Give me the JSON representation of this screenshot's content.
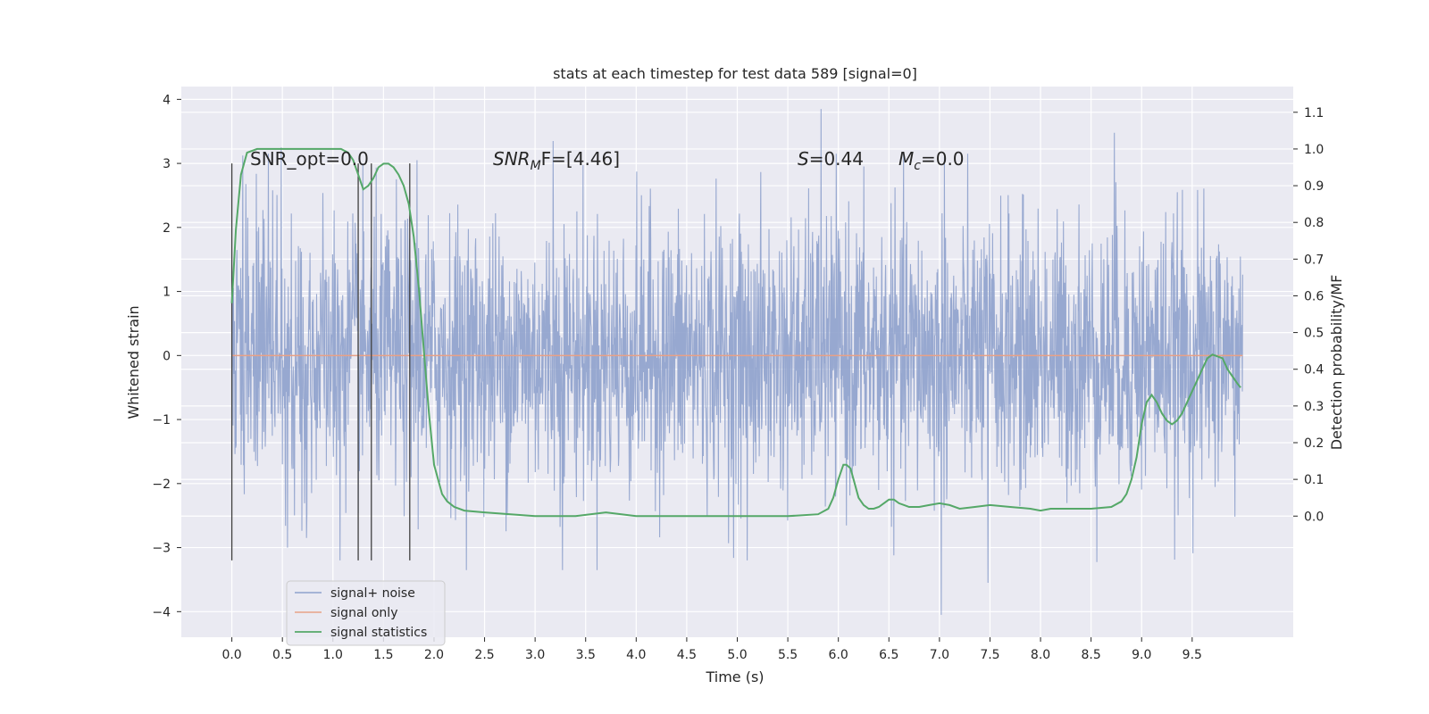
{
  "chart_data": {
    "type": "line",
    "title": "stats at each timestep for test data 589 [signal=0]",
    "xlabel": "Time (s)",
    "ylabel": "Whitened strain",
    "y2label": "Detection probability/MF",
    "xlim": [
      -0.5,
      10.5
    ],
    "ylim": [
      -4.4,
      4.2
    ],
    "y2lim": [
      -0.33,
      1.17
    ],
    "xticks": [
      "0.0",
      "0.5",
      "1.0",
      "1.5",
      "2.0",
      "2.5",
      "3.0",
      "3.5",
      "4.0",
      "4.5",
      "5.0",
      "5.5",
      "6.0",
      "6.5",
      "7.0",
      "7.5",
      "8.0",
      "8.5",
      "9.0",
      "9.5"
    ],
    "yticks": [
      "4",
      "3",
      "2",
      "1",
      "0",
      "−1",
      "−2",
      "−3",
      "−4"
    ],
    "y2ticks": [
      "1.1",
      "1.0",
      "0.9",
      "0.8",
      "0.7",
      "0.6",
      "0.5",
      "0.4",
      "0.3",
      "0.2",
      "0.1",
      "0.0"
    ],
    "grid": true,
    "legend_position": "lower-left",
    "annotations": {
      "snr_opt": "SNR_opt=0.0",
      "snr_mf_italic": "SNR",
      "snr_mf_sub": "M",
      "snr_mf_rest": "F=[4.46]",
      "s_italic": "S",
      "s_rest": "=0.44",
      "mc_italic": "M",
      "mc_sub": "c",
      "mc_rest": "=0.0"
    },
    "vertical_markers_x": [
      0.0,
      1.25,
      1.38,
      1.76
    ],
    "vertical_markers_range": [
      -3.2,
      3.0
    ],
    "noise": {
      "x_range": [
        0.0,
        10.0
      ],
      "typical_amplitude": 1.05,
      "max": 3.85,
      "min": -4.05,
      "peaks": [
        [
          5.83,
          3.85
        ],
        [
          8.73,
          3.48
        ],
        [
          3.18,
          3.35
        ],
        [
          0.49,
          3.25
        ],
        [
          7.05,
          3.1
        ],
        [
          1.83,
          3.05
        ],
        [
          7.02,
          -4.05
        ],
        [
          7.48,
          -3.55
        ],
        [
          3.27,
          -3.35
        ],
        [
          0.55,
          -3.0
        ],
        [
          5.1,
          -3.2
        ],
        [
          1.07,
          -3.2
        ]
      ]
    },
    "series": [
      {
        "name": "signal+ noise",
        "color": "#8ea1cc"
      },
      {
        "name": "signal only",
        "color": "#e8a186",
        "x": [
          0.0,
          10.0
        ],
        "y": [
          0.0,
          0.0
        ]
      },
      {
        "name": "signal statistics",
        "color": "#55a868",
        "x": [
          0.0,
          0.04,
          0.09,
          0.15,
          0.25,
          0.4,
          0.6,
          0.8,
          1.0,
          1.08,
          1.15,
          1.2,
          1.25,
          1.3,
          1.35,
          1.4,
          1.45,
          1.5,
          1.55,
          1.6,
          1.65,
          1.7,
          1.75,
          1.8,
          1.85,
          1.9,
          1.95,
          2.0,
          2.04,
          2.08,
          2.13,
          2.2,
          2.3,
          2.5,
          3.0,
          3.4,
          3.7,
          4.0,
          4.5,
          5.0,
          5.5,
          5.8,
          5.9,
          5.95,
          6.0,
          6.05,
          6.08,
          6.12,
          6.16,
          6.2,
          6.25,
          6.3,
          6.35,
          6.4,
          6.45,
          6.5,
          6.55,
          6.6,
          6.65,
          6.7,
          6.75,
          6.8,
          6.9,
          7.0,
          7.1,
          7.2,
          7.35,
          7.5,
          7.7,
          7.9,
          8.0,
          8.1,
          8.3,
          8.5,
          8.7,
          8.8,
          8.85,
          8.9,
          8.95,
          9.0,
          9.05,
          9.1,
          9.15,
          9.2,
          9.25,
          9.3,
          9.35,
          9.4,
          9.45,
          9.5,
          9.55,
          9.6,
          9.65,
          9.7,
          9.75,
          9.8,
          9.85,
          9.9,
          9.95,
          9.98
        ],
        "y": [
          0.58,
          0.78,
          0.93,
          0.99,
          1.0,
          1.0,
          1.0,
          1.0,
          1.0,
          1.0,
          0.99,
          0.97,
          0.93,
          0.89,
          0.9,
          0.92,
          0.95,
          0.96,
          0.96,
          0.95,
          0.93,
          0.9,
          0.85,
          0.76,
          0.62,
          0.45,
          0.28,
          0.14,
          0.1,
          0.06,
          0.04,
          0.025,
          0.015,
          0.01,
          0.0,
          0.0,
          0.01,
          0.0,
          0.0,
          0.0,
          0.0,
          0.005,
          0.02,
          0.05,
          0.1,
          0.14,
          0.14,
          0.13,
          0.09,
          0.05,
          0.03,
          0.02,
          0.02,
          0.025,
          0.035,
          0.045,
          0.045,
          0.035,
          0.03,
          0.025,
          0.025,
          0.025,
          0.03,
          0.035,
          0.03,
          0.02,
          0.025,
          0.03,
          0.025,
          0.02,
          0.015,
          0.02,
          0.02,
          0.02,
          0.025,
          0.04,
          0.06,
          0.1,
          0.16,
          0.25,
          0.31,
          0.33,
          0.31,
          0.28,
          0.26,
          0.25,
          0.26,
          0.28,
          0.31,
          0.34,
          0.37,
          0.4,
          0.43,
          0.44,
          0.435,
          0.43,
          0.4,
          0.38,
          0.36,
          0.35
        ]
      }
    ]
  }
}
